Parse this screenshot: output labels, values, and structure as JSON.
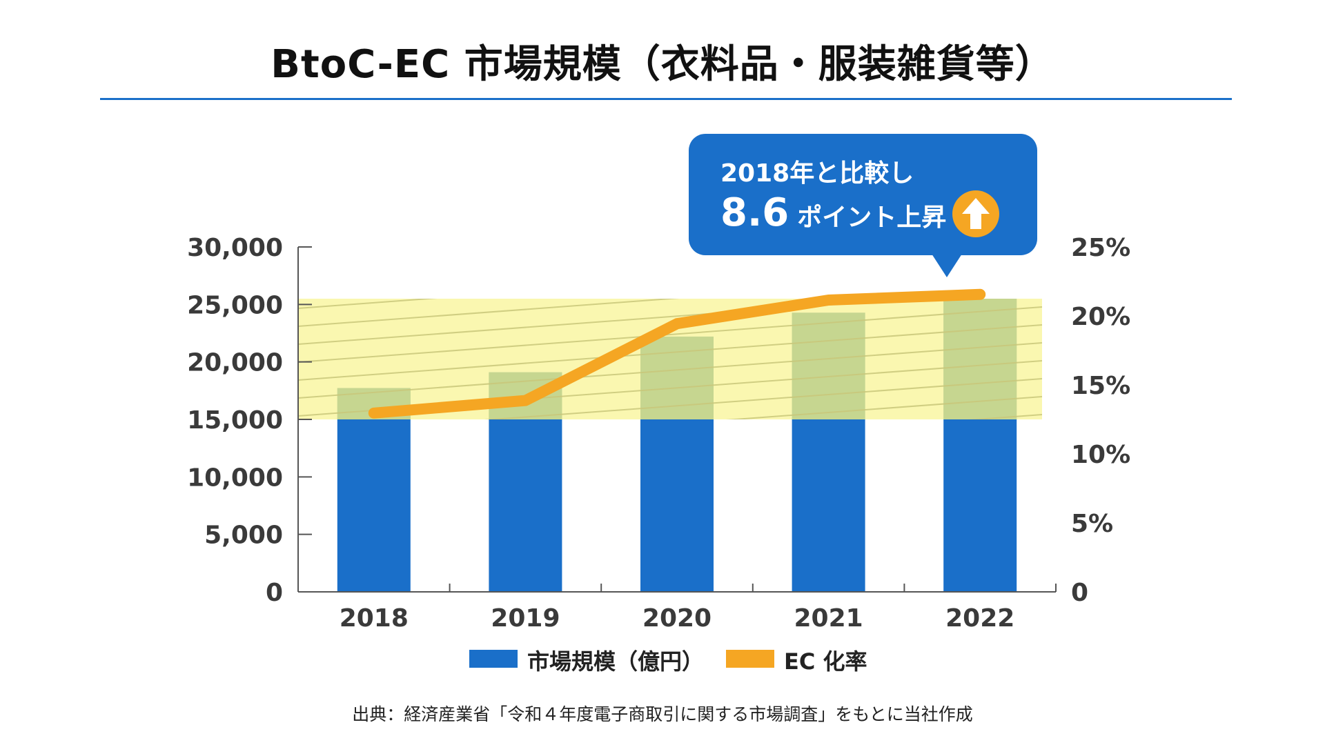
{
  "title": "BtoC-EC 市場規模（衣料品・服装雑貨等）",
  "callout": {
    "line1": "2018年と比較し",
    "value": "8.6",
    "suffix": "ポイント上昇",
    "icon": "up-arrow-icon"
  },
  "source": "出典：経済産業省「令和４年度電子商取引に関する市場調査」をもとに当社作成",
  "colors": {
    "bar": "#1a6fc9",
    "bar_highlighted": "#136b70",
    "line": "#f5a623",
    "highlight_band": "#f9f59a",
    "title_rule": "#1a6fc9",
    "callout": "#1a6fc9"
  },
  "chart_data": {
    "type": "bar",
    "categories": [
      "2018",
      "2019",
      "2020",
      "2021",
      "2022"
    ],
    "series": [
      {
        "name": "市場規模（億円）",
        "type": "bar",
        "axis": "left",
        "values": [
          17728,
          19100,
          22203,
          24279,
          25499
        ]
      },
      {
        "name": "EC 化率",
        "type": "line",
        "axis": "right",
        "values": [
          12.96,
          13.87,
          19.44,
          21.15,
          21.56
        ]
      }
    ],
    "y_left": {
      "ylim": [
        0,
        30000
      ],
      "ticks": [
        "0",
        "5,000",
        "10,000",
        "15,000",
        "20,000",
        "25,000",
        "30,000"
      ]
    },
    "y_right": {
      "ylim": [
        0,
        25
      ],
      "ticks": [
        "0",
        "5%",
        "10%",
        "15%",
        "20%",
        "25%"
      ]
    },
    "highlight_band": [
      15000,
      25500
    ],
    "legend": [
      "市場規模（億円）",
      "EC 化率"
    ],
    "legend_position": "bottom",
    "grid": false
  }
}
